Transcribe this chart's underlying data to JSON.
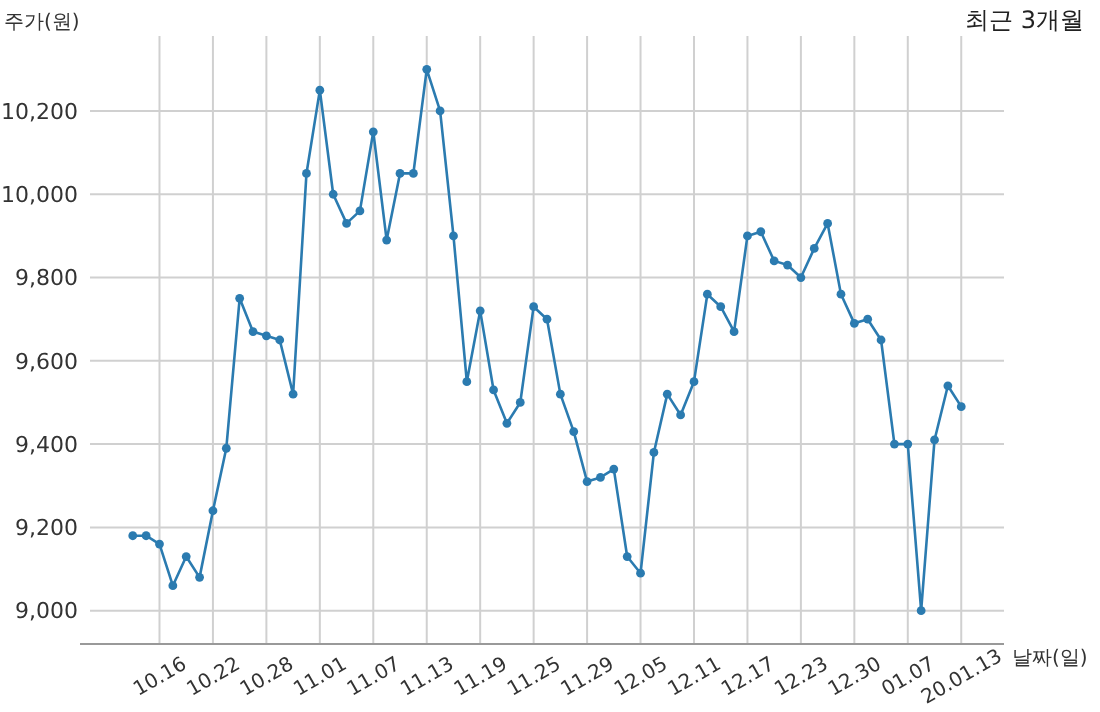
{
  "chart_data": {
    "type": "line",
    "title": "최근 3개월",
    "xlabel": "날짜(일)",
    "ylabel": "주가(원)",
    "categories": [
      null,
      null,
      "10.16",
      null,
      null,
      null,
      "10.22",
      null,
      null,
      null,
      "10.28",
      null,
      null,
      null,
      "11.01",
      null,
      null,
      null,
      "11.07",
      null,
      null,
      null,
      "11.13",
      null,
      null,
      null,
      "11.19",
      null,
      null,
      null,
      "11.25",
      null,
      null,
      null,
      "11.29",
      null,
      null,
      null,
      "12.05",
      null,
      null,
      null,
      "12.11",
      null,
      null,
      null,
      "12.17",
      null,
      null,
      null,
      "12.23",
      null,
      null,
      null,
      "12.30",
      null,
      null,
      null,
      "01.07",
      null,
      null,
      null,
      "20.01.13"
    ],
    "series": [
      {
        "color": "#2b7bb0",
        "values": [
          9180,
          9180,
          9160,
          9060,
          9130,
          9080,
          9240,
          9390,
          9750,
          9670,
          9660,
          9650,
          9520,
          10050,
          10250,
          10000,
          9930,
          9960,
          10150,
          9890,
          10050,
          10050,
          10300,
          10200,
          9900,
          9550,
          9720,
          9530,
          9450,
          9500,
          9730,
          9700,
          9520,
          9430,
          9310,
          9320,
          9340,
          9130,
          9090,
          9380,
          9520,
          9470,
          9550,
          9760,
          9730,
          9670,
          9900,
          9910,
          9840,
          9830,
          9800,
          9870,
          9930,
          9760,
          9690,
          9700,
          9650,
          9400,
          9400,
          9000,
          9410,
          9540,
          9490
        ]
      }
    ],
    "ylim": [
      8920,
      10380
    ],
    "yticks": [
      {
        "value": 9000,
        "label": "9,000"
      },
      {
        "value": 9200,
        "label": "9,200"
      },
      {
        "value": 9400,
        "label": "9,400"
      },
      {
        "value": 9600,
        "label": "9,600"
      },
      {
        "value": 9800,
        "label": "9,800"
      },
      {
        "value": 10000,
        "label": "10,000"
      },
      {
        "value": 10200,
        "label": "10,200"
      }
    ],
    "grid": true,
    "marker": "circle",
    "line_style": "solid"
  }
}
